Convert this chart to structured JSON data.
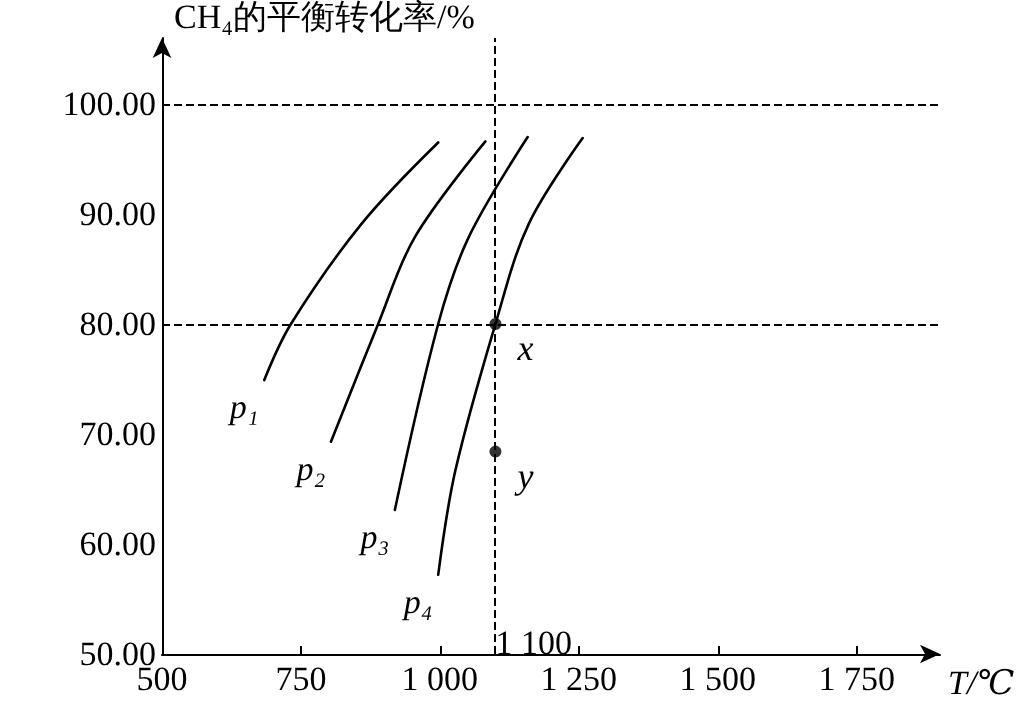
{
  "chart_data": {
    "type": "line",
    "ylabel": "CH₄的平衡转化率/%",
    "xlabel": "T/℃",
    "series": [
      {
        "name": "p₁",
        "color": "#000000",
        "marker": "none",
        "x": [
          684,
          732,
          859,
          997
        ],
        "values": [
          74.9,
          80,
          89.1,
          96.5
        ]
      },
      {
        "name": "p₂",
        "color": "#000000",
        "marker": "none",
        "x": [
          804,
          889,
          955,
          1082
        ],
        "values": [
          69.3,
          80,
          87.9,
          96.6
        ]
      },
      {
        "name": "p₃",
        "color": "#000000",
        "marker": "none",
        "x": [
          919,
          997,
          1052,
          1158
        ],
        "values": [
          63.1,
          80,
          87.9,
          97.0
        ]
      },
      {
        "name": "p₄",
        "color": "#000000",
        "marker": "none",
        "x": [
          997,
          1028,
          1100,
          1160,
          1257
        ],
        "values": [
          57.2,
          66.7,
          80,
          89.1,
          96.9
        ]
      },
      {
        "type": "scatter",
        "color": "#000000",
        "marker": "circle",
        "x": [
          1100,
          1100
        ],
        "values": [
          80,
          68.4
        ]
      }
    ],
    "xlim": [
      500,
      1900
    ],
    "ylim": [
      50,
      106
    ],
    "xticks": [
      500,
      750,
      {
        "value": 1000,
        "label": "1 000"
      },
      {
        "value": 1250,
        "label": "1 250"
      },
      {
        "value": 1500,
        "label": "1 500"
      },
      {
        "value": 1750,
        "label": "1 750"
      }
    ],
    "yticks": [
      {
        "value": 50,
        "label": "50.00"
      },
      {
        "value": 60,
        "label": "60.00"
      },
      {
        "value": 70,
        "label": "70.00"
      },
      {
        "value": 80,
        "label": "80.00"
      },
      {
        "value": 90,
        "label": "90.00"
      },
      {
        "value": 100,
        "label": "100.00"
      }
    ],
    "ref_lines": [
      {
        "axis": "y",
        "value": 80,
        "line_style": "dashed"
      },
      {
        "axis": "y",
        "value": 100,
        "line_style": "dashed"
      },
      {
        "axis": "x",
        "value": 1100,
        "label": "1 100",
        "line_style": "dashed"
      }
    ],
    "annotations": [
      {
        "text": "x",
        "x": 1100,
        "y": 80
      },
      {
        "text": "y",
        "x": 1100,
        "y": 68.4
      }
    ],
    "grid": false
  }
}
